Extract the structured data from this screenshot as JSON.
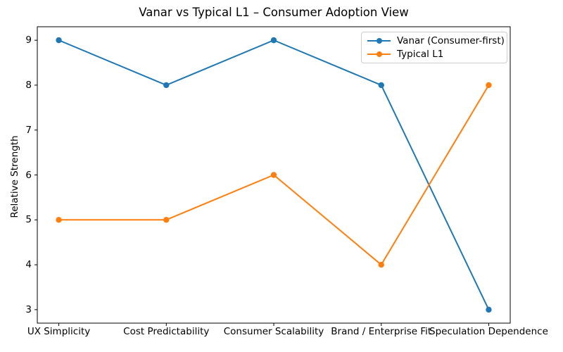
{
  "figure": {
    "background": "#ffffff",
    "frame_color": "#000000"
  },
  "chart_data": {
    "type": "line",
    "title": "Vanar vs Typical L1 – Consumer Adoption View",
    "xlabel": "",
    "ylabel": "Relative Strength",
    "categories": [
      "UX Simplicity",
      "Cost Predictability",
      "Consumer Scalability",
      "Brand / Enterprise Fit",
      "Speculation Dependence"
    ],
    "series": [
      {
        "name": "Vanar (Consumer-first)",
        "color": "#1f77b4",
        "marker": "circle",
        "values": [
          9,
          8,
          9,
          8,
          3
        ]
      },
      {
        "name": "Typical L1",
        "color": "#ff7f0e",
        "marker": "circle",
        "values": [
          5,
          5,
          6,
          4,
          8
        ]
      }
    ],
    "yticks": [
      3,
      4,
      5,
      6,
      7,
      8,
      9
    ],
    "ylim": [
      2.7,
      9.3
    ],
    "grid": false,
    "legend_position": "upper right"
  }
}
